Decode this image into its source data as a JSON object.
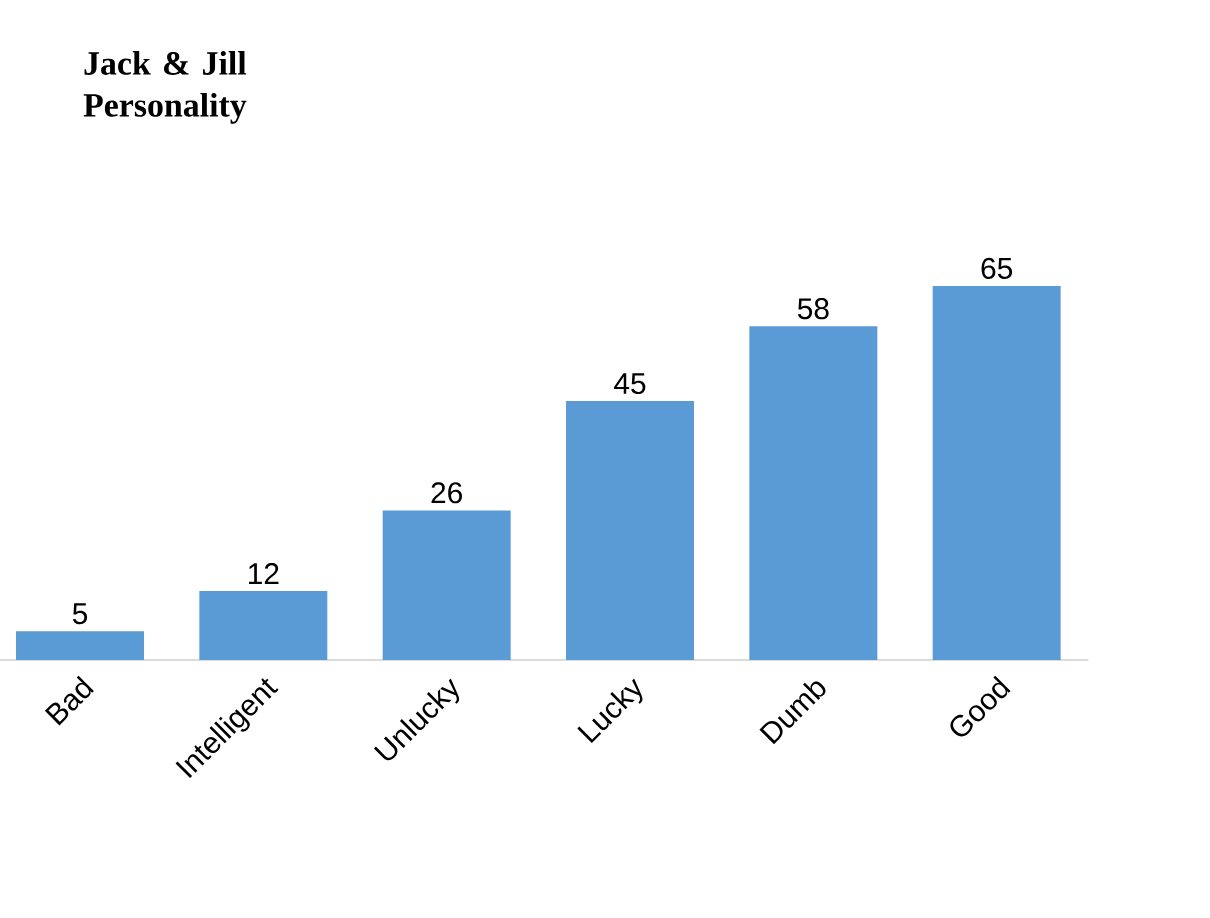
{
  "chart_data": {
    "type": "bar",
    "title": "Jack & Jill Personality",
    "categories": [
      "Bad",
      "Intelligent",
      "Unlucky",
      "Lucky",
      "Dumb",
      "Good"
    ],
    "values": [
      5,
      12,
      26,
      45,
      58,
      65
    ],
    "color": "#5b9bd5",
    "ylim": [
      0,
      65
    ],
    "data_labels": true
  }
}
